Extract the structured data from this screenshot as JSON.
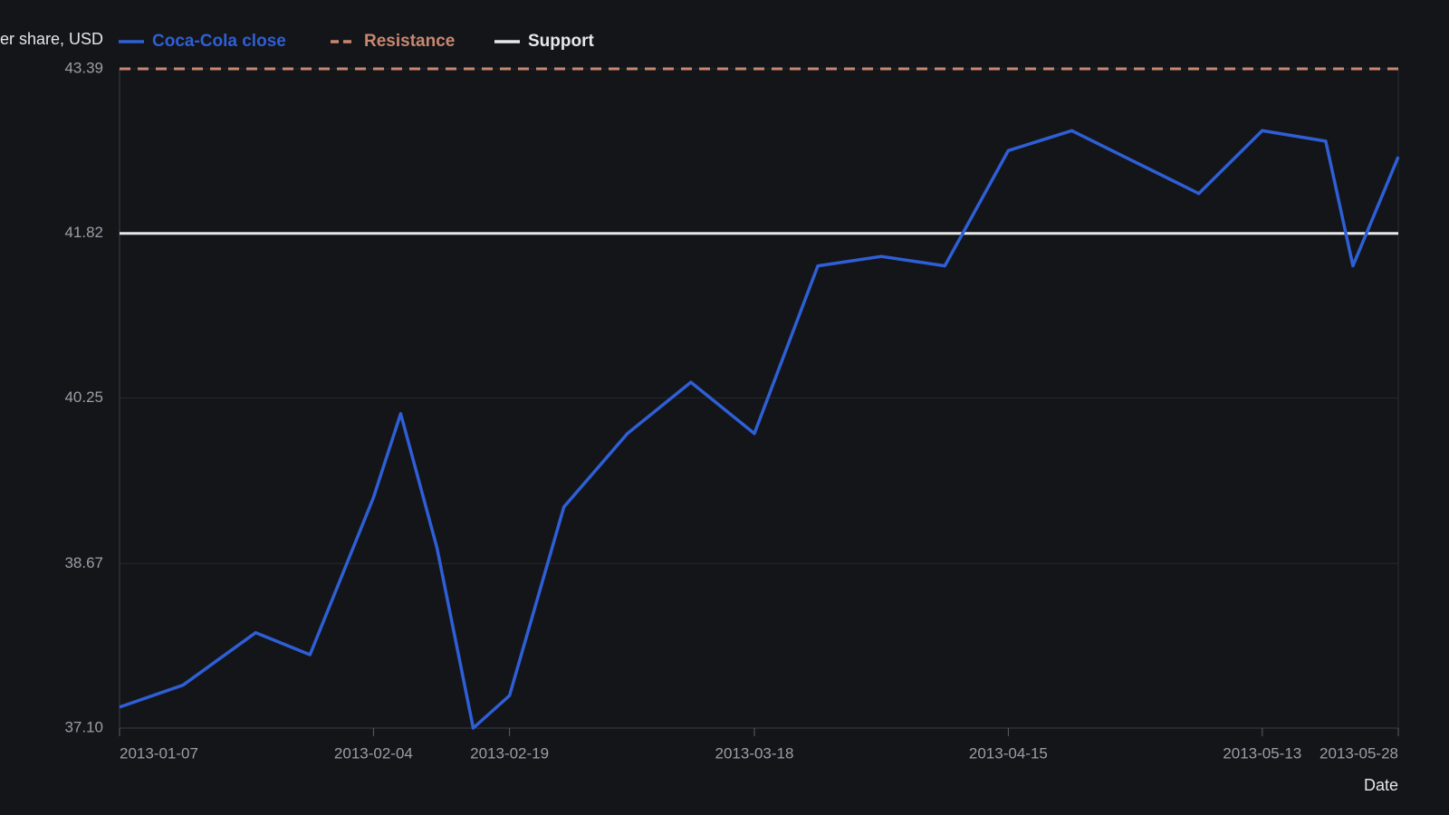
{
  "chart_data": {
    "type": "line",
    "y_label": "Price per share, USD",
    "x_label": "Date",
    "x": [
      "2013-01-07",
      "2013-01-14",
      "2013-01-22",
      "2013-01-28",
      "2013-02-04",
      "2013-02-07",
      "2013-02-11",
      "2013-02-15",
      "2013-02-19",
      "2013-02-25",
      "2013-03-04",
      "2013-03-11",
      "2013-03-18",
      "2013-03-25",
      "2013-04-01",
      "2013-04-08",
      "2013-04-15",
      "2013-04-22",
      "2013-04-29",
      "2013-05-06",
      "2013-05-13",
      "2013-05-20",
      "2013-05-23",
      "2013-05-28"
    ],
    "series": [
      {
        "name": "Coca-Cola close",
        "color": "#2f5fd6",
        "values": [
          37.3,
          37.51,
          38.01,
          37.8,
          39.3,
          40.1,
          38.82,
          37.1,
          37.41,
          39.21,
          39.91,
          40.4,
          39.91,
          41.51,
          41.6,
          41.51,
          42.61,
          42.8,
          42.5,
          42.2,
          42.8,
          42.7,
          41.51,
          42.55
        ]
      }
    ],
    "lines": [
      {
        "name": "Resistance",
        "value": 43.39,
        "color": "#c98770",
        "dashed": true
      },
      {
        "name": "Support",
        "value": 41.82,
        "color": "#e8e8e8",
        "dashed": false
      }
    ],
    "xlim": [
      "2013-01-07",
      "2013-05-28"
    ],
    "xticks": [
      "2013-01-07",
      "2013-02-04",
      "2013-02-19",
      "2013-03-18",
      "2013-04-15",
      "2013-05-13",
      "2013-05-28"
    ],
    "ylim": [
      37.1,
      43.39
    ],
    "yticks": [
      {
        "value": 37.1,
        "label": "37.10"
      },
      38.67,
      40.25,
      41.82,
      43.39
    ],
    "grid": true
  }
}
